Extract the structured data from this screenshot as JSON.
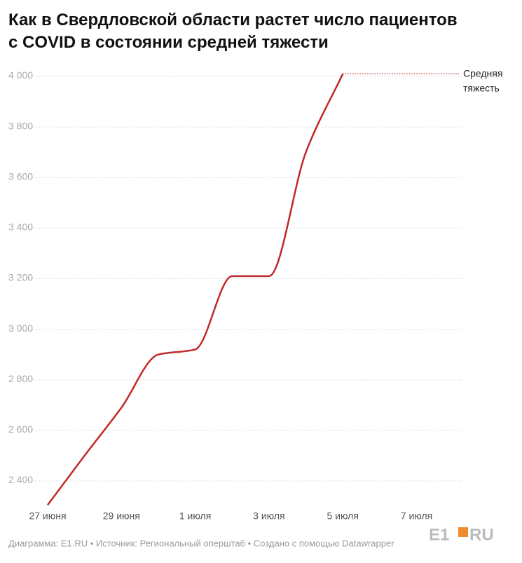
{
  "chart_data": {
    "type": "line",
    "title": "Как в Свердловской области растет число пациентов с COVID в состоянии средней тяжести",
    "categories": [
      "27 июня",
      null,
      "29 июня",
      null,
      "1 июля",
      null,
      "3 июля",
      null,
      "5 июля",
      null,
      "7 июля"
    ],
    "series": [
      {
        "name": "Средняя тяжесть",
        "color": "#c0292a",
        "values": [
          2305,
          2500,
          2690,
          2900,
          2920,
          3210,
          3210,
          3700,
          4010,
          null,
          null
        ]
      }
    ],
    "ylim": [
      2300,
      4025
    ],
    "yticks": [
      {
        "value": 2400,
        "label": "2 400"
      },
      {
        "value": 2600,
        "label": "2 600"
      },
      {
        "value": 2800,
        "label": "2 800"
      },
      {
        "value": 3000,
        "label": "3 000"
      },
      {
        "value": 3200,
        "label": "3 200"
      },
      {
        "value": 3400,
        "label": "3 400"
      },
      {
        "value": 3600,
        "label": "3 600"
      },
      {
        "value": 3800,
        "label": "3 800"
      },
      {
        "value": 4000,
        "label": "4 000"
      }
    ],
    "grid": true,
    "footer": "Диаграмма: E1.RU • Источник: Региональный оперштаб • Создано с помощью Datawrapper",
    "logo": [
      "E1",
      "RU"
    ]
  }
}
